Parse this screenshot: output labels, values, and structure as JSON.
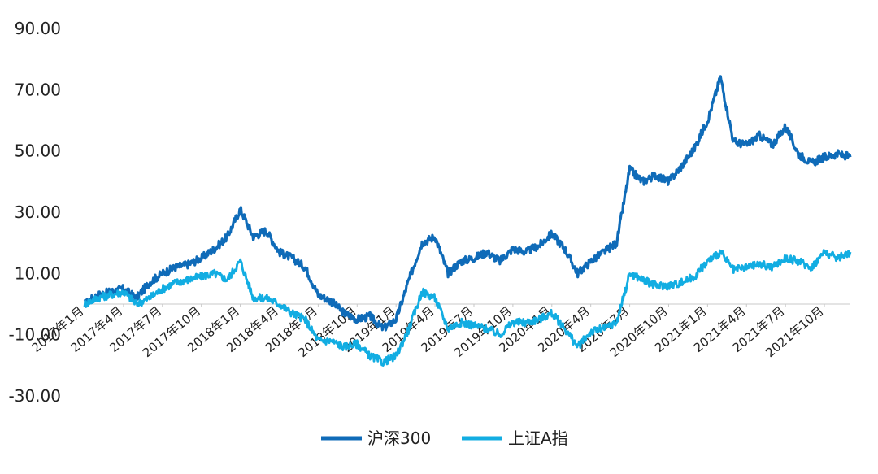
{
  "chart_data": {
    "type": "line",
    "title": "",
    "xlabel": "",
    "ylabel": "",
    "ylim": [
      -30,
      90
    ],
    "y_ticks": [
      "90.00",
      "70.00",
      "50.00",
      "30.00",
      "10.00",
      "-10.00",
      "-30.00"
    ],
    "y_tick_values": [
      90,
      70,
      50,
      30,
      10,
      -10,
      -30
    ],
    "x_tick_labels": [
      "2017年1月",
      "2017年4月",
      "2017年7月",
      "2017年10月",
      "2018年1月",
      "2018年4月",
      "2018年7月",
      "2018年10月",
      "2019年1月",
      "2019年4月",
      "2019年7月",
      "2019年10月",
      "2020年1月",
      "2020年4月",
      "2020年7月",
      "2020年10月",
      "2021年1月",
      "2021年4月",
      "2021年7月",
      "2021年10月"
    ],
    "x": [
      "2017-01",
      "2017-02",
      "2017-03",
      "2017-04",
      "2017-05",
      "2017-06",
      "2017-07",
      "2017-08",
      "2017-09",
      "2017-10",
      "2017-11",
      "2017-12",
      "2018-01",
      "2018-02",
      "2018-03",
      "2018-04",
      "2018-05",
      "2018-06",
      "2018-07",
      "2018-08",
      "2018-09",
      "2018-10",
      "2018-11",
      "2018-12",
      "2019-01",
      "2019-02",
      "2019-03",
      "2019-04",
      "2019-05",
      "2019-06",
      "2019-07",
      "2019-08",
      "2019-09",
      "2019-10",
      "2019-11",
      "2019-12",
      "2020-01",
      "2020-02",
      "2020-03",
      "2020-04",
      "2020-05",
      "2020-06",
      "2020-07",
      "2020-08",
      "2020-09",
      "2020-10",
      "2020-11",
      "2020-12",
      "2021-01",
      "2021-02",
      "2021-03",
      "2021-04",
      "2021-05",
      "2021-06",
      "2021-07",
      "2021-08",
      "2021-09",
      "2021-10",
      "2021-11",
      "2021-12"
    ],
    "series": [
      {
        "name": "沪深300",
        "color": "#0F6BB8",
        "values": [
          0,
          3,
          4,
          5,
          2,
          7,
          10,
          12,
          13,
          15,
          18,
          22,
          31,
          22,
          24,
          17,
          15,
          12,
          3,
          1,
          -3,
          -5,
          -4,
          -8,
          -5,
          8,
          20,
          22,
          10,
          14,
          15,
          17,
          14,
          18,
          17,
          19,
          23,
          18,
          10,
          14,
          17,
          20,
          44,
          40,
          42,
          40,
          45,
          51,
          60,
          74,
          53,
          52,
          55,
          52,
          58,
          49,
          46,
          48,
          49,
          48
        ]
      },
      {
        "name": "上证A指",
        "color": "#12ADE2",
        "values": [
          0,
          2,
          3,
          4,
          0,
          2,
          5,
          7,
          8,
          9,
          10,
          8,
          14,
          2,
          2,
          0,
          -3,
          -5,
          -12,
          -12,
          -14,
          -13,
          -17,
          -19,
          -17,
          -8,
          4,
          2,
          -8,
          -6,
          -7,
          -8,
          -10,
          -6,
          -6,
          -5,
          -3,
          -8,
          -14,
          -9,
          -8,
          -6,
          10,
          8,
          6,
          6,
          7,
          9,
          14,
          17,
          11,
          12,
          13,
          12,
          15,
          14,
          12,
          17,
          15,
          17
        ]
      }
    ],
    "legend_position": "bottom",
    "grid": false
  }
}
